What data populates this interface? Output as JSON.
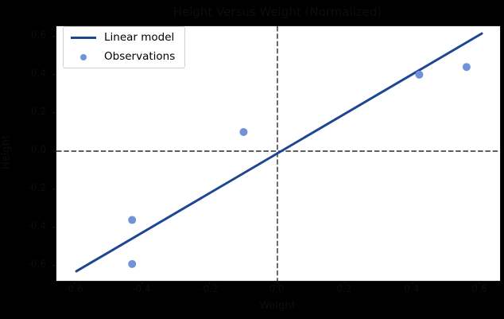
{
  "figure": {
    "title": "Height Versus Weight (Normalized)",
    "xlabel": "Weight",
    "ylabel": "Height",
    "background_color": "#000000",
    "plot_background_color": "#ffffff",
    "text_color": "#0d0d0d"
  },
  "legend": {
    "items": [
      {
        "label": "Linear model",
        "swatch": "line-swatch",
        "color": "#1d4693"
      },
      {
        "label": "Observations",
        "swatch": "dot-swatch",
        "color": "#6f92d8"
      }
    ]
  },
  "axes": {
    "x_tick_labels": [
      "-0.6",
      "-0.4",
      "-0.2",
      "0.0",
      "0.2",
      "0.4",
      "0.6"
    ],
    "x_tick_values": [
      -0.6,
      -0.4,
      -0.2,
      0.0,
      0.2,
      0.4,
      0.6
    ],
    "y_tick_labels": [
      "0.6",
      "0.4",
      "0.2",
      "0.0",
      "-0.2",
      "-0.4",
      "-0.6"
    ],
    "y_tick_values": [
      0.6,
      0.4,
      0.2,
      0.0,
      -0.2,
      -0.4,
      -0.6
    ]
  },
  "chart_data": {
    "type": "scatter",
    "title": "Height Versus Weight (Normalized)",
    "xlabel": "Weight",
    "ylabel": "Height",
    "xlim": [
      -0.654,
      0.659
    ],
    "ylim": [
      -0.678,
      0.653
    ],
    "grid": false,
    "legend_position": "upper-left",
    "reference_lines": {
      "x": 0.0,
      "y": 0.0,
      "style": "dashed",
      "color": "#2b2b2b"
    },
    "series": [
      {
        "name": "Linear model",
        "type": "line",
        "color": "#1d4693",
        "x": [
          -0.595,
          0.605
        ],
        "y": [
          -0.628,
          0.615
        ],
        "slope": 1.04,
        "intercept": 0.0
      },
      {
        "name": "Observations",
        "type": "scatter",
        "color": "#6f92d8",
        "points": [
          [
            -0.43,
            -0.59
          ],
          [
            -0.43,
            -0.36
          ],
          [
            -0.1,
            0.1
          ],
          [
            0.42,
            0.4
          ],
          [
            0.56,
            0.44
          ]
        ]
      }
    ]
  }
}
